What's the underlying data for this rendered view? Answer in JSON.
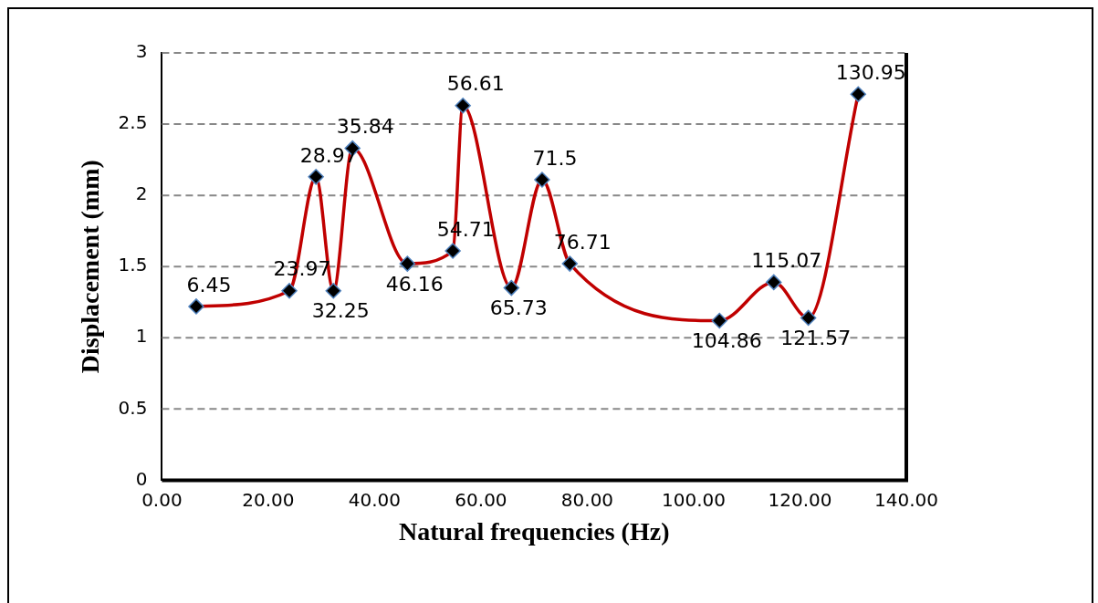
{
  "chart_data": {
    "type": "line",
    "xlabel": "Natural frequencies (Hz)",
    "ylabel": "Displacement (mm)",
    "x": [
      6.45,
      23.97,
      28.97,
      32.25,
      35.84,
      46.16,
      54.71,
      56.61,
      65.73,
      71.5,
      76.71,
      104.86,
      115.07,
      121.57,
      130.95
    ],
    "series": [
      {
        "color": "#c00000",
        "values": [
          1.22,
          1.33,
          2.13,
          1.33,
          2.33,
          1.52,
          1.61,
          2.63,
          1.35,
          2.11,
          1.52,
          1.12,
          1.39,
          1.14,
          2.71
        ]
      }
    ],
    "annotations": [
      {
        "text": "6.45",
        "x": 6.45,
        "y": 1.22
      },
      {
        "text": "23.97",
        "x": 23.97,
        "y": 1.33
      },
      {
        "text": "28.97",
        "x": 28.97,
        "y": 2.13
      },
      {
        "text": "32.25",
        "x": 32.25,
        "y": 1.33
      },
      {
        "text": "35.84",
        "x": 35.84,
        "y": 2.33
      },
      {
        "text": "46.16",
        "x": 46.16,
        "y": 1.52
      },
      {
        "text": "54.71",
        "x": 54.71,
        "y": 1.61
      },
      {
        "text": "56.61",
        "x": 56.61,
        "y": 2.63
      },
      {
        "text": "65.73",
        "x": 65.73,
        "y": 1.35
      },
      {
        "text": "71.5",
        "x": 71.5,
        "y": 2.11
      },
      {
        "text": "76.71",
        "x": 76.71,
        "y": 1.52
      },
      {
        "text": "104.86",
        "x": 104.86,
        "y": 1.12
      },
      {
        "text": "115.07",
        "x": 115.07,
        "y": 1.39
      },
      {
        "text": "121.57",
        "x": 121.57,
        "y": 1.14
      },
      {
        "text": "130.95",
        "x": 130.95,
        "y": 2.71
      }
    ],
    "xlim": [
      0,
      140
    ],
    "xticks": [
      {
        "value": 0,
        "label": "0.00"
      },
      {
        "value": 20,
        "label": "20.00"
      },
      {
        "value": 40,
        "label": "40.00"
      },
      {
        "value": 60,
        "label": "60.00"
      },
      {
        "value": 80,
        "label": "80.00"
      },
      {
        "value": 100,
        "label": "100.00"
      },
      {
        "value": 120,
        "label": "120.00"
      },
      {
        "value": 140,
        "label": "140.00"
      }
    ],
    "ylim": [
      0,
      3
    ],
    "yticks": [
      0,
      0.5,
      1,
      1.5,
      2,
      2.5,
      3
    ],
    "grid": "y",
    "legend": false,
    "marker": "diamond",
    "line_style": "solid"
  }
}
